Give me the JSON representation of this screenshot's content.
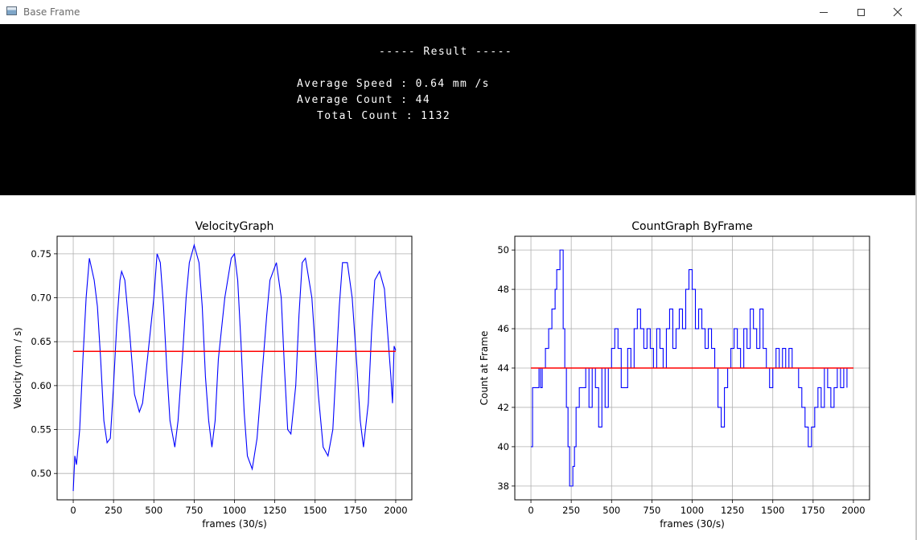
{
  "window": {
    "title": "Base Frame",
    "icons": {
      "app": "window-app-icon",
      "minimize": "minimize-icon",
      "maximize": "maximize-icon",
      "close": "close-icon"
    }
  },
  "result": {
    "header": "----- Result -----",
    "avg_speed": "Average Speed : 0.64 mm /s",
    "avg_count": "Average Count : 44",
    "total_count": "Total Count : 1132"
  },
  "chart_data": [
    {
      "type": "line",
      "title": "VelocityGraph",
      "xlabel": "frames (30/s)",
      "ylabel": "Velocity (mm / s)",
      "xlim": [
        -100,
        2100
      ],
      "ylim": [
        0.47,
        0.77
      ],
      "xticks": [
        0,
        250,
        500,
        750,
        1000,
        1250,
        1500,
        1750,
        2000
      ],
      "yticks": [
        0.5,
        0.55,
        0.6,
        0.65,
        0.7,
        0.75
      ],
      "ytick_labels": [
        "0.50",
        "0.55",
        "0.60",
        "0.65",
        "0.70",
        "0.75"
      ],
      "grid": true,
      "series": [
        {
          "color": "#0000ff",
          "x": [
            0,
            10,
            20,
            40,
            60,
            80,
            100,
            130,
            150,
            170,
            190,
            210,
            230,
            250,
            270,
            290,
            300,
            320,
            350,
            380,
            410,
            430,
            460,
            500,
            520,
            540,
            560,
            580,
            600,
            630,
            650,
            680,
            700,
            720,
            750,
            780,
            800,
            820,
            840,
            860,
            880,
            900,
            940,
            980,
            1000,
            1020,
            1040,
            1060,
            1080,
            1110,
            1140,
            1170,
            1200,
            1220,
            1260,
            1290,
            1310,
            1330,
            1350,
            1380,
            1400,
            1420,
            1440,
            1480,
            1520,
            1550,
            1580,
            1610,
            1630,
            1650,
            1670,
            1700,
            1730,
            1760,
            1780,
            1800,
            1830,
            1850,
            1870,
            1900,
            1930,
            1950,
            1970,
            1980,
            1990,
            2000
          ],
          "y": [
            0.48,
            0.52,
            0.51,
            0.55,
            0.63,
            0.7,
            0.745,
            0.72,
            0.69,
            0.63,
            0.56,
            0.535,
            0.54,
            0.6,
            0.67,
            0.72,
            0.73,
            0.72,
            0.66,
            0.59,
            0.57,
            0.58,
            0.63,
            0.7,
            0.75,
            0.74,
            0.69,
            0.62,
            0.56,
            0.53,
            0.56,
            0.64,
            0.7,
            0.74,
            0.76,
            0.74,
            0.69,
            0.61,
            0.56,
            0.53,
            0.56,
            0.63,
            0.7,
            0.745,
            0.75,
            0.72,
            0.65,
            0.57,
            0.52,
            0.505,
            0.54,
            0.61,
            0.68,
            0.72,
            0.74,
            0.7,
            0.62,
            0.55,
            0.545,
            0.6,
            0.68,
            0.74,
            0.745,
            0.7,
            0.59,
            0.53,
            0.52,
            0.55,
            0.62,
            0.69,
            0.74,
            0.74,
            0.7,
            0.62,
            0.56,
            0.53,
            0.58,
            0.66,
            0.72,
            0.73,
            0.71,
            0.66,
            0.61,
            0.58,
            0.645,
            0.64
          ]
        },
        {
          "color": "#ff0000",
          "x": [
            0,
            2000
          ],
          "y": [
            0.639,
            0.639
          ]
        }
      ]
    },
    {
      "type": "line",
      "title": "CountGraph ByFrame",
      "xlabel": "frames (30/s)",
      "ylabel": "Count at Frame",
      "xlim": [
        -100,
        2100
      ],
      "ylim": [
        37.3,
        50.7
      ],
      "xticks": [
        0,
        250,
        500,
        750,
        1000,
        1250,
        1500,
        1750,
        2000
      ],
      "yticks": [
        38,
        40,
        42,
        44,
        46,
        48,
        50
      ],
      "grid": true,
      "series": [
        {
          "color": "#0000ff",
          "step": true,
          "x": [
            0,
            10,
            30,
            50,
            60,
            70,
            90,
            110,
            130,
            150,
            160,
            180,
            190,
            200,
            210,
            220,
            230,
            240,
            250,
            260,
            270,
            280,
            300,
            320,
            340,
            360,
            380,
            400,
            420,
            440,
            460,
            480,
            500,
            520,
            540,
            560,
            580,
            600,
            620,
            640,
            660,
            680,
            700,
            720,
            740,
            760,
            780,
            800,
            820,
            840,
            860,
            880,
            900,
            920,
            940,
            960,
            980,
            1000,
            1020,
            1040,
            1060,
            1080,
            1100,
            1120,
            1140,
            1160,
            1180,
            1200,
            1220,
            1240,
            1260,
            1280,
            1300,
            1320,
            1340,
            1360,
            1380,
            1400,
            1420,
            1440,
            1460,
            1480,
            1500,
            1520,
            1540,
            1560,
            1580,
            1600,
            1620,
            1640,
            1660,
            1680,
            1700,
            1720,
            1740,
            1760,
            1780,
            1800,
            1820,
            1840,
            1860,
            1880,
            1900,
            1920,
            1940,
            1960
          ],
          "y": [
            40,
            43,
            43,
            44,
            43,
            44,
            45,
            46,
            47,
            48,
            49,
            50,
            50,
            46,
            44,
            42,
            40,
            38,
            38,
            39,
            40,
            42,
            43,
            43,
            44,
            42,
            44,
            43,
            41,
            44,
            42,
            44,
            45,
            46,
            45,
            43,
            43,
            45,
            44,
            46,
            47,
            46,
            45,
            46,
            45,
            44,
            46,
            45,
            44,
            46,
            47,
            45,
            46,
            47,
            46,
            48,
            49,
            48,
            46,
            47,
            46,
            45,
            46,
            45,
            44,
            42,
            41,
            43,
            44,
            45,
            46,
            45,
            44,
            46,
            45,
            47,
            46,
            45,
            47,
            45,
            44,
            43,
            44,
            45,
            44,
            45,
            44,
            45,
            44,
            44,
            43,
            42,
            41,
            40,
            41,
            42,
            43,
            42,
            44,
            43,
            42,
            43,
            44,
            43,
            44,
            43
          ]
        },
        {
          "color": "#ff0000",
          "x": [
            0,
            2000
          ],
          "y": [
            44,
            44
          ]
        }
      ]
    }
  ]
}
